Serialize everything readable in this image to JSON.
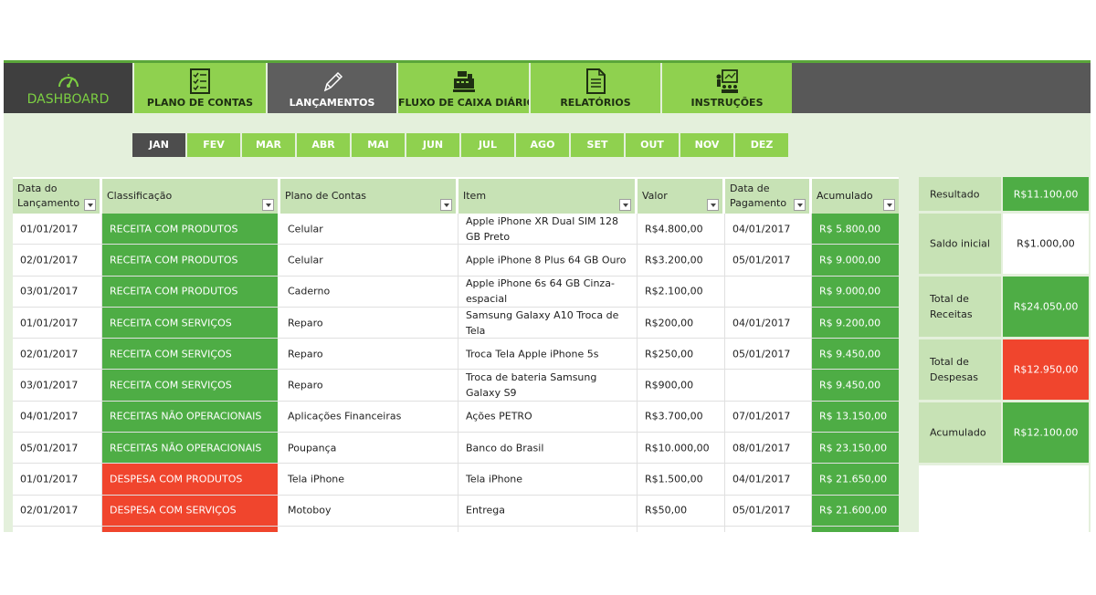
{
  "nav": {
    "dashboard": "DASHBOARD",
    "plano_contas": "PLANO DE CONTAS",
    "lancamentos": "LANÇAMENTOS",
    "fluxo": "FLUXO DE CAIXA DIÁRIO",
    "relatorios": "RELATÓRIOS",
    "instrucoes": "INSTRUÇÕES"
  },
  "months": [
    "JAN",
    "FEV",
    "MAR",
    "ABR",
    "MAI",
    "JUN",
    "JUL",
    "AGO",
    "SET",
    "OUT",
    "NOV",
    "DEZ"
  ],
  "active_month": "JAN",
  "table": {
    "headers": {
      "data_lancamento": "Data do Lançamento",
      "classificacao": "Classificação",
      "plano": "Plano de Contas",
      "item": "Item",
      "valor": "Valor",
      "data_pagamento": "Data de Pagamento",
      "acumulado": "Acumulado"
    },
    "rows": [
      {
        "data": "01/01/2017",
        "classificacao": "RECEITA COM PRODUTOS",
        "plano": "Celular",
        "item": "Apple iPhone XR Dual SIM 128 GB Preto",
        "valor": "R$4.800,00",
        "pagamento": "04/01/2017",
        "acumulado": "R$ 5.800,00",
        "tipo": "receita"
      },
      {
        "data": "02/01/2017",
        "classificacao": "RECEITA COM PRODUTOS",
        "plano": "Celular",
        "item": "Apple iPhone 8 Plus 64 GB Ouro",
        "valor": "R$3.200,00",
        "pagamento": "05/01/2017",
        "acumulado": "R$ 9.000,00",
        "tipo": "receita"
      },
      {
        "data": "03/01/2017",
        "classificacao": "RECEITA COM PRODUTOS",
        "plano": "Caderno",
        "item": "Apple iPhone 6s 64 GB Cinza-espacial",
        "valor": "R$2.100,00",
        "pagamento": "",
        "acumulado": "R$ 9.000,00",
        "tipo": "receita"
      },
      {
        "data": "01/01/2017",
        "classificacao": "RECEITA COM SERVIÇOS",
        "plano": "Reparo",
        "item": "Samsung Galaxy A10 Troca de Tela",
        "valor": "R$200,00",
        "pagamento": "04/01/2017",
        "acumulado": "R$ 9.200,00",
        "tipo": "receita"
      },
      {
        "data": "02/01/2017",
        "classificacao": "RECEITA COM SERVIÇOS",
        "plano": "Reparo",
        "item": "Troca Tela Apple iPhone 5s",
        "valor": "R$250,00",
        "pagamento": "05/01/2017",
        "acumulado": "R$ 9.450,00",
        "tipo": "receita"
      },
      {
        "data": "03/01/2017",
        "classificacao": "RECEITA COM SERVIÇOS",
        "plano": "Reparo",
        "item": "Troca de bateria Samsung Galaxy S9",
        "valor": "R$900,00",
        "pagamento": "",
        "acumulado": "R$ 9.450,00",
        "tipo": "receita"
      },
      {
        "data": "04/01/2017",
        "classificacao": "RECEITAS NÃO OPERACIONAIS",
        "plano": "Aplicações Financeiras",
        "item": "Ações PETRO",
        "valor": "R$3.700,00",
        "pagamento": "07/01/2017",
        "acumulado": "R$ 13.150,00",
        "tipo": "receita"
      },
      {
        "data": "05/01/2017",
        "classificacao": "RECEITAS NÃO OPERACIONAIS",
        "plano": "Poupança",
        "item": "Banco do Brasil",
        "valor": "R$10.000,00",
        "pagamento": "08/01/2017",
        "acumulado": "R$ 23.150,00",
        "tipo": "receita"
      },
      {
        "data": "01/01/2017",
        "classificacao": "DESPESA COM PRODUTOS",
        "plano": "Tela iPhone",
        "item": "Tela iPhone",
        "valor": "R$1.500,00",
        "pagamento": "04/01/2017",
        "acumulado": "R$ 21.650,00",
        "tipo": "despesa"
      },
      {
        "data": "02/01/2017",
        "classificacao": "DESPESA COM SERVIÇOS",
        "plano": "Motoboy",
        "item": "Entrega",
        "valor": "R$50,00",
        "pagamento": "05/01/2017",
        "acumulado": "R$ 21.600,00",
        "tipo": "despesa"
      }
    ]
  },
  "summary": {
    "resultado_label": "Resultado",
    "resultado": "R$11.100,00",
    "saldo_label": "Saldo inicial",
    "saldo": "R$1.000,00",
    "receitas_label": "Total de Receitas",
    "receitas": "R$24.050,00",
    "despesas_label": "Total de Despesas",
    "despesas": "R$12.950,00",
    "acumulado_label": "Acumulado",
    "acumulado": "R$12.100,00"
  },
  "colors": {
    "nav_green": "#8fd14f",
    "cell_green": "#4ead45",
    "cell_red": "#f0452d",
    "header_green": "#c7e2b5",
    "background": "#e4f0dc",
    "nav_dark": "#585858"
  },
  "icons": {
    "dashboard": "speedometer-icon",
    "plano_contas": "checklist-icon",
    "lancamentos": "pencil-icon",
    "fluxo": "cash-register-icon",
    "relatorios": "document-icon",
    "instrucoes": "presentation-icon"
  }
}
